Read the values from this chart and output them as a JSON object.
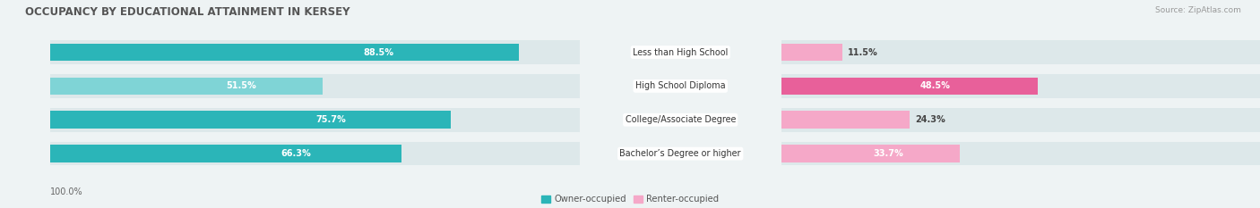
{
  "title": "OCCUPANCY BY EDUCATIONAL ATTAINMENT IN KERSEY",
  "source": "Source: ZipAtlas.com",
  "categories": [
    "Less than High School",
    "High School Diploma",
    "College/Associate Degree",
    "Bachelor’s Degree or higher"
  ],
  "owner_values": [
    88.5,
    51.5,
    75.7,
    66.3
  ],
  "renter_values": [
    11.5,
    48.5,
    24.3,
    33.7
  ],
  "owner_color_dark": "#2bb5b8",
  "owner_color_light": "#7fd4d6",
  "renter_color_dark": "#e8609a",
  "renter_color_light": "#f5a8c8",
  "owner_label": "Owner-occupied",
  "renter_label": "Renter-occupied",
  "background_color": "#eef3f4",
  "bar_bg_color": "#dde8ea",
  "title_fontsize": 8.5,
  "label_fontsize": 7.2,
  "value_fontsize": 7.0,
  "tick_fontsize": 7.0,
  "source_fontsize": 6.5,
  "owner_dark_threshold": [
    true,
    false,
    true,
    true
  ],
  "renter_dark_threshold": [
    false,
    true,
    false,
    false
  ]
}
